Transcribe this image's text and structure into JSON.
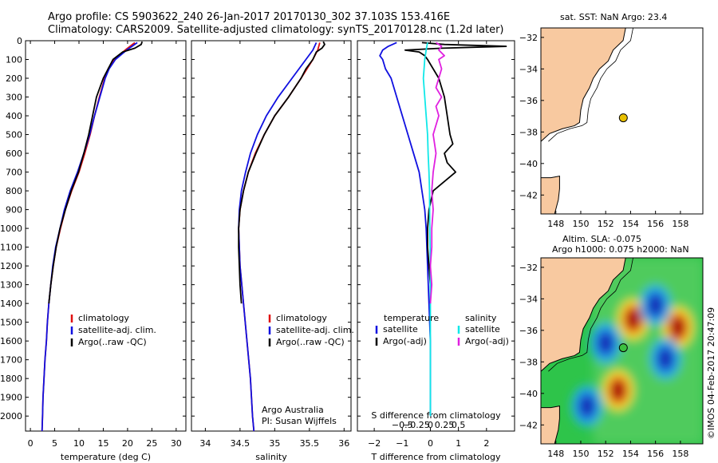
{
  "header": {
    "line1": "Argo profile: CS 5903622_240 26-Jan-2017 20170130_302 37.103S 153.416E",
    "line2": "Climatology: CARS2009. Satellite-adjusted climatology: synTS_20170128.nc (1.2d later)"
  },
  "right": {
    "sst_title": "sat. SST: NaN Argo: 23.4",
    "sla_title1": "Altim. SLA: -0.075",
    "sla_title2": "Argo h1000: 0.075 h2000: NaN",
    "credit": "©IMOS 04-Feb-2017 20:47:09"
  },
  "colors": {
    "climatology": "#e01010",
    "satellite": "#1010e0",
    "argo": "#000000",
    "sal_satellite": "#10e8e8",
    "sal_argo": "#e020e0",
    "land": "#f8c9a0",
    "float": "#e8c000"
  },
  "legends": {
    "temp": [
      "climatology",
      "satellite-adj. clim.",
      "Argo(..raw -QC)"
    ],
    "sal": [
      "climatology",
      "satellite-adj. clim.",
      "Argo(..raw -QC)"
    ],
    "diff_t_head": "temperature",
    "diff_s_head": "salinity",
    "diff_t": [
      "satellite",
      "Argo(-adj)"
    ],
    "diff_s": [
      "satellite",
      "Argo(-adj)"
    ]
  },
  "annotations": {
    "sal_note1": "Argo Australia",
    "sal_note2": "PI: Susan Wijffels"
  },
  "chart_data": [
    {
      "type": "line",
      "name": "temperature",
      "xlabel": "temperature (deg C)",
      "ylabel": "",
      "xlim": [
        -1,
        32
      ],
      "ylim": [
        2080,
        0
      ],
      "xticks": [
        0,
        5,
        10,
        15,
        20,
        25,
        30
      ],
      "yticks": [
        0,
        100,
        200,
        300,
        400,
        500,
        600,
        700,
        800,
        900,
        1000,
        1100,
        1200,
        1300,
        1400,
        1500,
        1600,
        1700,
        1800,
        1900,
        2000
      ],
      "series": [
        {
          "name": "climatology",
          "depth": [
            10,
            50,
            100,
            150,
            200,
            300,
            400,
            500,
            600,
            700,
            800,
            900,
            1000,
            1100,
            1200,
            1300,
            1400,
            1500,
            1600,
            1700,
            1800,
            1900,
            2000,
            2080
          ],
          "values": [
            21.5,
            19.5,
            17.2,
            16.0,
            15.3,
            14.2,
            13.2,
            12.3,
            11.2,
            10.0,
            8.5,
            7.2,
            6.2,
            5.3,
            4.7,
            4.2,
            3.8,
            3.5,
            3.3,
            3.0,
            2.8,
            2.6,
            2.5,
            2.4
          ]
        },
        {
          "name": "satellite-adj. clim.",
          "depth": [
            10,
            50,
            100,
            150,
            200,
            300,
            400,
            500,
            600,
            700,
            800,
            900,
            1000,
            1100,
            1200,
            1300,
            1400,
            1500,
            1600,
            1700,
            1800,
            1900,
            2000,
            2080
          ],
          "values": [
            22.0,
            19.8,
            17.5,
            16.2,
            15.4,
            14.3,
            13.2,
            12.2,
            11.0,
            9.7,
            8.2,
            7.0,
            6.1,
            5.2,
            4.6,
            4.2,
            3.8,
            3.5,
            3.3,
            3.0,
            2.8,
            2.6,
            2.5,
            2.4
          ]
        },
        {
          "name": "Argo(..raw -QC)",
          "depth": [
            5,
            20,
            40,
            60,
            100,
            150,
            200,
            250,
            300,
            400,
            500,
            600,
            700,
            800,
            900,
            1000,
            1100,
            1200,
            1300,
            1400
          ],
          "values": [
            23.0,
            22.8,
            21.5,
            19.0,
            17.0,
            16.0,
            15.0,
            14.3,
            13.6,
            12.8,
            12.0,
            11.0,
            9.9,
            8.4,
            7.2,
            6.1,
            5.3,
            4.7,
            4.2,
            3.8
          ]
        }
      ]
    },
    {
      "type": "line",
      "name": "salinity",
      "xlabel": "salinity",
      "ylabel": "",
      "xlim": [
        33.8,
        36.1
      ],
      "ylim": [
        2080,
        0
      ],
      "xticks": [
        34,
        34.5,
        35,
        35.5,
        36
      ],
      "series": [
        {
          "name": "climatology",
          "depth": [
            10,
            50,
            100,
            200,
            300,
            400,
            500,
            600,
            700,
            800,
            900,
            1000,
            1200,
            1400,
            1600,
            1800,
            2000,
            2080
          ],
          "values": [
            35.65,
            35.62,
            35.55,
            35.38,
            35.2,
            35.0,
            34.85,
            34.72,
            34.62,
            34.55,
            34.5,
            34.48,
            34.5,
            34.55,
            34.6,
            34.65,
            34.68,
            34.7
          ]
        },
        {
          "name": "satellite-adj. clim.",
          "depth": [
            10,
            50,
            100,
            200,
            300,
            400,
            500,
            600,
            700,
            800,
            900,
            1000,
            1200,
            1400,
            1600,
            1800,
            2000,
            2080
          ],
          "values": [
            35.6,
            35.55,
            35.45,
            35.25,
            35.05,
            34.88,
            34.75,
            34.65,
            34.58,
            34.52,
            34.49,
            34.48,
            34.5,
            34.55,
            34.6,
            34.65,
            34.68,
            34.7
          ]
        },
        {
          "name": "Argo(..raw -QC)",
          "depth": [
            5,
            20,
            40,
            60,
            100,
            150,
            200,
            300,
            400,
            500,
            600,
            700,
            800,
            900,
            1000,
            1100,
            1200,
            1300,
            1400
          ],
          "values": [
            35.7,
            35.72,
            35.68,
            35.6,
            35.55,
            35.45,
            35.38,
            35.2,
            35.0,
            34.85,
            34.73,
            34.62,
            34.55,
            34.5,
            34.48,
            34.48,
            34.49,
            34.5,
            34.52
          ]
        }
      ]
    },
    {
      "type": "line",
      "name": "difference",
      "xlabel": "T difference from climatology",
      "xlabel_top": "S difference from climatology",
      "xlim": [
        -2.6,
        3.0
      ],
      "ylim": [
        2080,
        0
      ],
      "xticks": [
        -2,
        -1,
        0,
        1,
        2
      ],
      "xticks_s": [
        -0.5,
        -0.25,
        0,
        0.25,
        0.5
      ],
      "series": [
        {
          "name": "temperature satellite",
          "depth": [
            10,
            30,
            50,
            80,
            100,
            150,
            200,
            300,
            400,
            500,
            600,
            700,
            800,
            900,
            1000,
            1200,
            1400,
            1600,
            1800,
            2000
          ],
          "values": [
            -1.2,
            -1.5,
            -1.7,
            -1.8,
            -1.7,
            -1.6,
            -1.4,
            -1.2,
            -1.0,
            -0.8,
            -0.6,
            -0.4,
            -0.3,
            -0.2,
            -0.15,
            -0.1,
            -0.05,
            0,
            0,
            0
          ]
        },
        {
          "name": "temperature Argo(-adj)",
          "depth": [
            10,
            20,
            30,
            40,
            50,
            60,
            80,
            100,
            150,
            200,
            250,
            300,
            400,
            500,
            550,
            600,
            650,
            700,
            750,
            800,
            900,
            1000,
            1100,
            1200,
            1300,
            1400
          ],
          "values": [
            -0.3,
            0.5,
            2.7,
            0.4,
            -0.9,
            -0.4,
            -0.2,
            -0.1,
            0.1,
            0.3,
            0.4,
            0.5,
            0.6,
            0.7,
            0.8,
            0.5,
            0.6,
            0.9,
            0.5,
            0.1,
            -0.05,
            -0.1,
            -0.1,
            -0.05,
            0,
            0
          ]
        },
        {
          "name": "salinity satellite",
          "depth": [
            10,
            50,
            100,
            200,
            300,
            400,
            500,
            600,
            700,
            800,
            1000,
            1200,
            1400,
            1600,
            1800,
            2000
          ],
          "values": [
            -0.1,
            -0.15,
            -0.2,
            -0.25,
            -0.2,
            -0.15,
            -0.1,
            -0.08,
            -0.05,
            -0.03,
            -0.02,
            0,
            0,
            0,
            0,
            0
          ]
        },
        {
          "name": "salinity Argo(-adj)",
          "depth": [
            10,
            30,
            50,
            80,
            100,
            150,
            200,
            250,
            300,
            350,
            400,
            500,
            600,
            700,
            800,
            900,
            1000,
            1100,
            1200,
            1300,
            1400
          ],
          "values": [
            0.2,
            0.4,
            0.3,
            0.5,
            0.3,
            0.4,
            0.3,
            0.2,
            0.4,
            0.2,
            0.3,
            0.1,
            0.2,
            0.1,
            0.05,
            0.1,
            0.05,
            0.05,
            0,
            0.05,
            0
          ]
        }
      ]
    },
    {
      "type": "scatter",
      "name": "sst_map",
      "title": "sat. SST: NaN Argo: 23.4",
      "xlim": [
        146.8,
        159.8
      ],
      "ylim": [
        -43.2,
        -31.4
      ],
      "xticks": [
        148,
        150,
        152,
        154,
        156,
        158
      ],
      "yticks": [
        -32,
        -34,
        -36,
        -38,
        -40,
        -42
      ],
      "points": [
        {
          "lon": 153.416,
          "lat": -37.103
        }
      ]
    },
    {
      "type": "heatmap",
      "name": "sla_map",
      "title": "Altim. SLA: -0.075 / Argo h1000: 0.075 h2000: NaN",
      "xlim": [
        146.8,
        159.8
      ],
      "ylim": [
        -43.2,
        -31.4
      ],
      "xticks": [
        148,
        150,
        152,
        154,
        156,
        158
      ],
      "yticks": [
        -32,
        -34,
        -36,
        -38,
        -40,
        -42
      ],
      "points": [
        {
          "lon": 153.416,
          "lat": -37.103
        }
      ],
      "features": [
        {
          "kind": "high",
          "lon": 154.2,
          "lat": -35.3,
          "value": 0.6
        },
        {
          "kind": "high",
          "lon": 153.0,
          "lat": -39.8,
          "value": 0.6
        },
        {
          "kind": "high",
          "lon": 157.8,
          "lat": -35.8,
          "value": 0.5
        },
        {
          "kind": "low",
          "lon": 156.0,
          "lat": -34.4,
          "value": -0.5
        },
        {
          "kind": "low",
          "lon": 152.0,
          "lat": -36.8,
          "value": -0.5
        },
        {
          "kind": "low",
          "lon": 156.8,
          "lat": -37.8,
          "value": -0.4
        },
        {
          "kind": "low",
          "lon": 150.5,
          "lat": -40.8,
          "value": -0.4
        }
      ]
    }
  ]
}
